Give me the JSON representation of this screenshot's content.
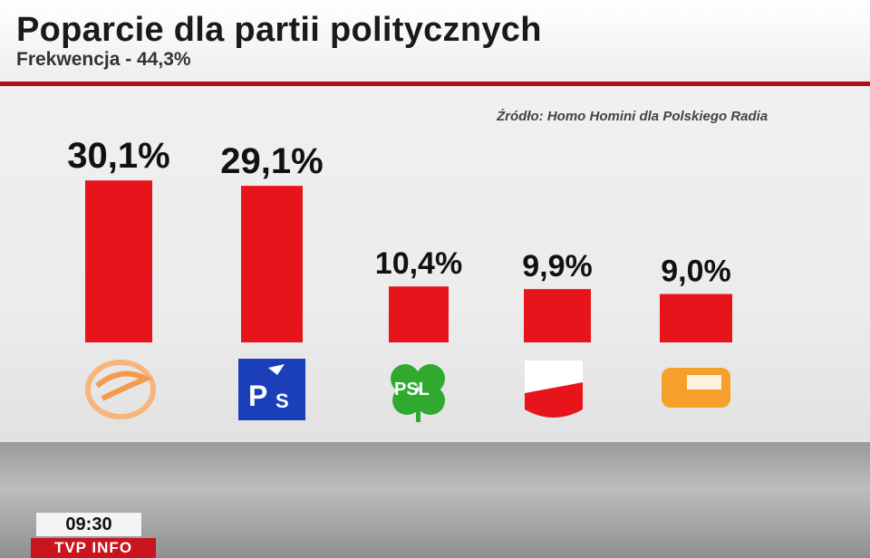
{
  "header": {
    "title": "Poparcie dla partii politycznych",
    "subtitle": "Frekwencja - 44,3%"
  },
  "source": "Źródło: Homo Homini dla Polskiego Radia",
  "broadcast": {
    "clock": "09:30",
    "channel": "TVP INFO"
  },
  "colors": {
    "bar": "#e8141c",
    "rule": "#b0101c"
  },
  "chart_data": {
    "type": "bar",
    "title": "Poparcie dla partii politycznych",
    "categories": [
      "PO",
      "PiS",
      "PSL",
      "SLD",
      "Ruch Palikota"
    ],
    "value_labels": [
      "30,1%",
      "29,1%",
      "10,4%",
      "9,9%",
      "9,0%"
    ],
    "values": [
      30.1,
      29.1,
      10.4,
      9.9,
      9.0
    ],
    "ylabel": "",
    "xlabel": "",
    "ylim": [
      0,
      36
    ],
    "legend": "none",
    "grid": false,
    "category_icons": [
      "po-logo-icon",
      "pis-logo-icon",
      "psl-logo-icon",
      "sld-logo-icon",
      "ruch-palikota-logo-icon"
    ]
  }
}
